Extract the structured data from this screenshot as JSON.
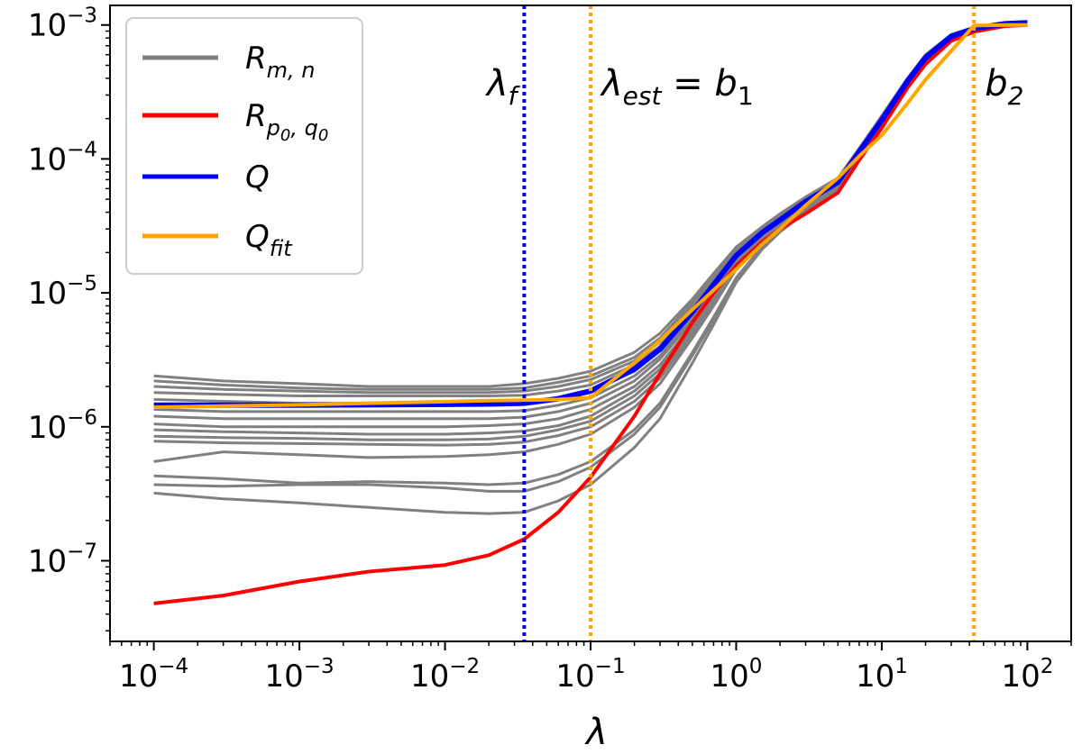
{
  "chart_data": {
    "type": "line",
    "xscale": "log",
    "yscale": "log",
    "xlim": [
      5e-05,
      200
    ],
    "ylim": [
      2.5e-08,
      0.0014
    ],
    "xlabel": "λ",
    "ylabel": "",
    "grid": false,
    "legend_position": "top-left",
    "x_ticks": [
      {
        "value": 0.0001,
        "base": "10",
        "exp": "−4"
      },
      {
        "value": 0.001,
        "base": "10",
        "exp": "−3"
      },
      {
        "value": 0.01,
        "base": "10",
        "exp": "−2"
      },
      {
        "value": 0.1,
        "base": "10",
        "exp": "−1"
      },
      {
        "value": 1,
        "base": "10",
        "exp": "0"
      },
      {
        "value": 10,
        "base": "10",
        "exp": "1"
      },
      {
        "value": 100,
        "base": "10",
        "exp": "2"
      }
    ],
    "y_ticks": [
      {
        "value": 1e-07,
        "base": "10",
        "exp": "−7"
      },
      {
        "value": 1e-06,
        "base": "10",
        "exp": "−6"
      },
      {
        "value": 1e-05,
        "base": "10",
        "exp": "−5"
      },
      {
        "value": 0.0001,
        "base": "10",
        "exp": "−4"
      },
      {
        "value": 0.001,
        "base": "10",
        "exp": "−3"
      }
    ],
    "legend": [
      {
        "base": "R",
        "sub": "m, n",
        "subsub": "",
        "color": "#808080"
      },
      {
        "base": "R",
        "sub": "p",
        "subsub": "0",
        "sub2": ", q",
        "subsub2": "0",
        "color": "#ff0000"
      },
      {
        "base": "Q",
        "sub": "",
        "subsub": "",
        "color": "#0000ff"
      },
      {
        "base": "Q",
        "sub": "fit",
        "subsub": "",
        "color": "#ffa500"
      }
    ],
    "vlines": [
      {
        "x": 0.035,
        "color": "#0000ff",
        "label_base": "λ",
        "label_sub": "f",
        "label_rest": ""
      },
      {
        "x": 0.1,
        "color": "#ffa500",
        "label_base": "λ",
        "label_sub": "est",
        "label_rest": " = b",
        "label_rest_sub": "1"
      },
      {
        "x": 43,
        "color": "#ffa500",
        "label_base": "b",
        "label_sub": "2",
        "label_rest": ""
      }
    ],
    "x": [
      0.0001,
      0.0003,
      0.001,
      0.003,
      0.01,
      0.02,
      0.035,
      0.06,
      0.1,
      0.2,
      0.3,
      0.5,
      0.7,
      1,
      1.5,
      2,
      3,
      5,
      7,
      10,
      15,
      20,
      30,
      43,
      70,
      100
    ],
    "gray_series": [
      {
        "values": [
          2.4e-06,
          2.2e-06,
          2.1e-06,
          2e-06,
          2e-06,
          2e-06,
          2.1e-06,
          2.3e-06,
          2.6e-06,
          3.6e-06,
          5e-06,
          9e-06,
          1.4e-05,
          2.2e-05,
          3.1e-05,
          3.9e-05,
          5.2e-05,
          7.2e-05,
          0.00012,
          0.00021,
          0.0004,
          0.0006,
          0.00085,
          0.00096,
          0.00104,
          0.00106
        ]
      },
      {
        "values": [
          2.2e-06,
          2.05e-06,
          1.95e-06,
          1.9e-06,
          1.9e-06,
          1.9e-06,
          1.95e-06,
          2.15e-06,
          2.4e-06,
          3.3e-06,
          4.6e-06,
          8.5e-06,
          1.3e-05,
          2.1e-05,
          3e-05,
          3.8e-05,
          5.1e-05,
          7e-05,
          0.000118,
          0.000205,
          0.00039,
          0.00059,
          0.00084,
          0.00095,
          0.00103,
          0.00105
        ]
      },
      {
        "values": [
          2e-06,
          1.9e-06,
          1.85e-06,
          1.8e-06,
          1.8e-06,
          1.8e-06,
          1.85e-06,
          2e-06,
          2.25e-06,
          3.1e-06,
          4.3e-06,
          8e-06,
          1.25e-05,
          2e-05,
          2.9e-05,
          3.7e-05,
          5e-05,
          6.9e-05,
          0.000116,
          0.0002,
          0.000385,
          0.00058,
          0.00083,
          0.00095,
          0.00103,
          0.00105
        ]
      },
      {
        "values": [
          1.8e-06,
          1.75e-06,
          1.7e-06,
          1.7e-06,
          1.7e-06,
          1.7e-06,
          1.72e-06,
          1.85e-06,
          2.05e-06,
          2.9e-06,
          4e-06,
          7.5e-06,
          1.2e-05,
          1.95e-05,
          2.85e-05,
          3.6e-05,
          4.9e-05,
          6.8e-05,
          0.000115,
          0.000198,
          0.00038,
          0.00058,
          0.00083,
          0.00095,
          0.00103,
          0.00105
        ]
      },
      {
        "values": [
          1.6e-06,
          1.55e-06,
          1.5e-06,
          1.5e-06,
          1.5e-06,
          1.5e-06,
          1.52e-06,
          1.65e-06,
          1.85e-06,
          2.6e-06,
          3.7e-06,
          7e-06,
          1.12e-05,
          1.9e-05,
          2.8e-05,
          3.5e-05,
          4.8e-05,
          6.7e-05,
          0.000113,
          0.000195,
          0.00038,
          0.00057,
          0.00082,
          0.00094,
          0.00102,
          0.00104
        ]
      },
      {
        "values": [
          1.35e-06,
          1.3e-06,
          1.3e-06,
          1.3e-06,
          1.3e-06,
          1.3e-06,
          1.32e-06,
          1.45e-06,
          1.65e-06,
          2.4e-06,
          3.4e-06,
          6.5e-06,
          1.06e-05,
          1.8e-05,
          2.7e-05,
          3.4e-05,
          4.7e-05,
          6.6e-05,
          0.000112,
          0.000193,
          0.000375,
          0.00057,
          0.00082,
          0.00094,
          0.00102,
          0.00104
        ]
      },
      {
        "values": [
          1.2e-06,
          1.15e-06,
          1.15e-06,
          1.15e-06,
          1.15e-06,
          1.15e-06,
          1.18e-06,
          1.3e-06,
          1.5e-06,
          2.2e-06,
          3.2e-06,
          6.2e-06,
          1.02e-05,
          1.75e-05,
          2.65e-05,
          3.35e-05,
          4.6e-05,
          6.5e-05,
          0.00011,
          0.00019,
          0.00037,
          0.00056,
          0.00081,
          0.00094,
          0.00102,
          0.00104
        ]
      },
      {
        "values": [
          1.05e-06,
          1e-06,
          1e-06,
          1e-06,
          1e-06,
          1.02e-06,
          1.05e-06,
          1.15e-06,
          1.35e-06,
          2e-06,
          2.9e-06,
          5.8e-06,
          9.6e-06,
          1.7e-05,
          2.6e-05,
          3.3e-05,
          4.5e-05,
          6.4e-05,
          0.000109,
          0.000188,
          0.00037,
          0.00056,
          0.00081,
          0.00093,
          0.00101,
          0.00103
        ]
      },
      {
        "values": [
          9.5e-07,
          9.2e-07,
          9e-07,
          8.8e-07,
          8.8e-07,
          9e-07,
          9.3e-07,
          1.02e-06,
          1.2e-06,
          1.85e-06,
          2.7e-06,
          5.5e-06,
          9.2e-06,
          1.65e-05,
          2.55e-05,
          3.25e-05,
          4.45e-05,
          6.3e-05,
          0.000108,
          0.000187,
          0.000365,
          0.00055,
          0.0008,
          0.00093,
          0.00101,
          0.00103
        ]
      },
      {
        "values": [
          8.5e-07,
          8.3e-07,
          8.2e-07,
          8e-07,
          8e-07,
          8.1e-07,
          8.5e-07,
          9.5e-07,
          1.1e-06,
          1.7e-06,
          2.5e-06,
          5.2e-06,
          8.8e-06,
          1.6e-05,
          2.5e-05,
          3.2e-05,
          4.4e-05,
          6.2e-05,
          0.000107,
          0.000185,
          0.00036,
          0.00055,
          0.0008,
          0.00093,
          0.00101,
          0.00103
        ]
      },
      {
        "values": [
          7.8e-07,
          7.6e-07,
          7.5e-07,
          7.4e-07,
          7.3e-07,
          7.4e-07,
          7.7e-07,
          8.6e-07,
          1e-06,
          1.55e-06,
          2.3e-06,
          4.9e-06,
          8.4e-06,
          1.55e-05,
          2.45e-05,
          3.15e-05,
          4.35e-05,
          6.1e-05,
          0.000106,
          0.000183,
          0.00036,
          0.00054,
          0.00079,
          0.00092,
          0.001,
          0.00102
        ]
      },
      {
        "values": [
          5.5e-07,
          6.5e-07,
          6.2e-07,
          5.9e-07,
          6e-07,
          6.2e-07,
          6.5e-07,
          7.4e-07,
          8.8e-07,
          1.4e-06,
          2.1e-06,
          4.6e-06,
          8e-06,
          1.5e-05,
          2.4e-05,
          3.1e-05,
          4.3e-05,
          6e-05,
          0.000105,
          0.000182,
          0.000355,
          0.00054,
          0.00079,
          0.00092,
          0.001,
          0.00102
        ]
      },
      {
        "values": [
          4.3e-07,
          4.1e-07,
          3.8e-07,
          3.9e-07,
          3.8e-07,
          3.7e-07,
          3.8e-07,
          4.4e-07,
          5.5e-07,
          9.5e-07,
          1.5e-06,
          3.6e-06,
          6.6e-06,
          1.3e-05,
          2.2e-05,
          2.95e-05,
          4.1e-05,
          5.8e-05,
          0.000102,
          0.000178,
          0.00035,
          0.00053,
          0.00078,
          0.00091,
          0.00099,
          0.00101
        ]
      },
      {
        "values": [
          3.7e-07,
          3.6e-07,
          3.7e-07,
          3.7e-07,
          3.5e-07,
          3.3e-07,
          3.3e-07,
          3.9e-07,
          5e-07,
          8.8e-07,
          1.4e-06,
          3.4e-06,
          6.3e-06,
          1.27e-05,
          2.15e-05,
          2.9e-05,
          4.05e-05,
          5.75e-05,
          0.000101,
          0.000177,
          0.00035,
          0.00053,
          0.00078,
          0.00091,
          0.00099,
          0.00101
        ]
      },
      {
        "values": [
          3.2e-07,
          2.9e-07,
          2.7e-07,
          2.5e-07,
          2.3e-07,
          2.25e-07,
          2.3e-07,
          2.8e-07,
          3.7e-07,
          7e-07,
          1.15e-06,
          3e-06,
          5.8e-06,
          1.2e-05,
          2.1e-05,
          2.85e-05,
          4e-05,
          5.7e-05,
          0.0001,
          0.000175,
          0.000345,
          0.00052,
          0.00077,
          0.0009,
          0.00098,
          0.001
        ]
      }
    ],
    "series": [
      {
        "key": "R_p0q0",
        "color": "#ff0000",
        "values": [
          4.8e-08,
          5.5e-08,
          7e-08,
          8.3e-08,
          9.3e-08,
          1.1e-07,
          1.45e-07,
          2.3e-07,
          4.2e-07,
          1.2e-06,
          2.5e-06,
          6e-06,
          1e-05,
          1.6e-05,
          2.4e-05,
          3e-05,
          3.9e-05,
          5.6e-05,
          9.8e-05,
          0.00017,
          0.00034,
          0.00051,
          0.00076,
          0.00089,
          0.00098,
          0.001
        ]
      },
      {
        "key": "Q",
        "color": "#0000ff",
        "values": [
          1.45e-06,
          1.45e-06,
          1.45e-06,
          1.46e-06,
          1.47e-06,
          1.48e-06,
          1.5e-06,
          1.62e-06,
          1.85e-06,
          2.7e-06,
          3.8e-06,
          7.2e-06,
          1.15e-05,
          1.9e-05,
          2.8e-05,
          3.5e-05,
          4.8e-05,
          6.7e-05,
          0.000113,
          0.000195,
          0.00038,
          0.00057,
          0.00082,
          0.00094,
          0.00102,
          0.00104
        ]
      },
      {
        "key": "Q_fit",
        "color": "#ffa500",
        "values": [
          1.4e-06,
          1.43e-06,
          1.46e-06,
          1.5e-06,
          1.54e-06,
          1.57e-06,
          1.58e-06,
          1.6e-06,
          1.65e-06,
          3e-06,
          4.4e-06,
          7.5e-06,
          1.05e-05,
          1.5e-05,
          2.3e-05,
          3e-05,
          4.5e-05,
          7.2e-05,
          0.000105,
          0.00015,
          0.00026,
          0.00039,
          0.00064,
          0.00099,
          0.001,
          0.001
        ]
      }
    ]
  }
}
